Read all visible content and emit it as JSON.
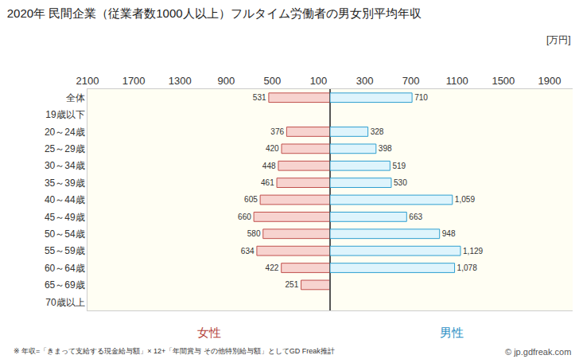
{
  "chart_data": [
    {
      "type": "bar",
      "orientation": "horizontal",
      "title": "2020年 民間企業（従業者数1000人以上）フルタイム労働者の男女別平均年収",
      "unit_label": "[万円]",
      "footnote": "※ 年収=「きまって支給する現金給与額」× 12+「年間賞与 その他特別給与額」としてGD Freak推計",
      "source": "© jp.gdfreak.com",
      "categories": [
        "全体",
        "19歳以下",
        "20～24歳",
        "25～29歳",
        "30～34歳",
        "35～39歳",
        "40～44歳",
        "45～49歳",
        "50～54歳",
        "55～59歳",
        "60～64歳",
        "65～69歳",
        "70歳以上"
      ],
      "series": [
        {
          "name": "女性",
          "color": "#f7d3cf",
          "values": [
            531,
            null,
            376,
            420,
            448,
            461,
            605,
            660,
            580,
            634,
            422,
            251,
            null
          ]
        }
      ],
      "xlim": [
        2100,
        0
      ],
      "xticks": [
        2100,
        1700,
        1300,
        900,
        500,
        100
      ],
      "data_labels": true
    },
    {
      "type": "bar",
      "orientation": "horizontal",
      "categories": [
        "全体",
        "19歳以下",
        "20～24歳",
        "25～29歳",
        "30～34歳",
        "35～39歳",
        "40～44歳",
        "45～49歳",
        "50～54歳",
        "55～59歳",
        "60～64歳",
        "65～69歳",
        "70歳以上"
      ],
      "series": [
        {
          "name": "男性",
          "color": "#def4fc",
          "values": [
            710,
            null,
            328,
            398,
            519,
            530,
            1059,
            663,
            948,
            1129,
            1078,
            null,
            null
          ],
          "value_labels": [
            "710",
            null,
            "328",
            "398",
            "519",
            "530",
            "1,059",
            "663",
            "948",
            "1,129",
            "1,078",
            null,
            null
          ]
        }
      ],
      "xlim": [
        0,
        2100
      ],
      "xticks": [
        300,
        700,
        1100,
        1500,
        1900
      ],
      "data_labels": true,
      "tick_labels": "x"
    }
  ]
}
